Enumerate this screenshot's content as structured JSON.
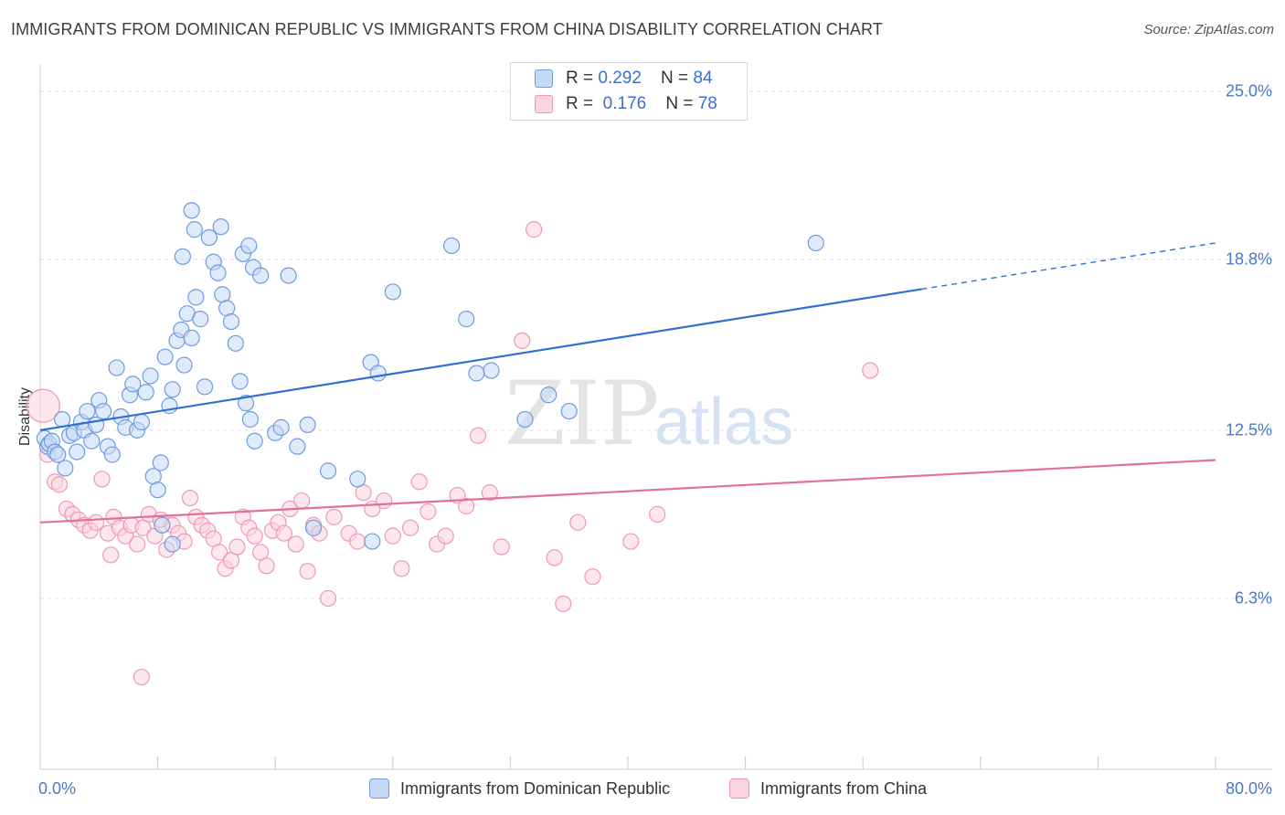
{
  "header": {
    "title": "IMMIGRANTS FROM DOMINICAN REPUBLIC VS IMMIGRANTS FROM CHINA DISABILITY CORRELATION CHART",
    "source": "Source: ZipAtlas.com"
  },
  "watermark": {
    "zip": "ZIP",
    "atlas": "atlas"
  },
  "colors": {
    "blue_fill": "#c5d8f5",
    "blue_stroke": "#6f9be0",
    "blue_line": "#2f6fd2",
    "pink_fill": "#fbd3df",
    "pink_stroke": "#ef98b5",
    "pink_line": "#e3709a",
    "grid": "#dcdcdc",
    "tick_label": "#4a78c8"
  },
  "legend": {
    "rows": [
      {
        "r_label": "R = ",
        "r_value": "0.292",
        "n_label": "N = ",
        "n_value": "84",
        "series": "blue"
      },
      {
        "r_label": "R = ",
        "r_value": " 0.176",
        "n_label": "N = ",
        "n_value": "78",
        "series": "pink"
      }
    ]
  },
  "chart_data": {
    "type": "scatter",
    "title": "IMMIGRANTS FROM DOMINICAN REPUBLIC VS IMMIGRANTS FROM CHINA DISABILITY CORRELATION CHART",
    "xlabel": "",
    "ylabel": "Disability",
    "xlim": [
      0,
      80
    ],
    "ylim": [
      0,
      26
    ],
    "x_tick_labels": [
      "0.0%",
      "80.0%"
    ],
    "y_ticks": [
      6.3,
      12.5,
      18.8,
      25.0
    ],
    "y_tick_labels": [
      "6.3%",
      "12.5%",
      "18.8%",
      "25.0%"
    ],
    "grid": true,
    "series": [
      {
        "name": "Immigrants from Dominican Republic",
        "color": "blue",
        "R": 0.292,
        "N": 84,
        "trend": {
          "x0": 0,
          "y0": 12.5,
          "x1": 60,
          "y1": 17.7,
          "dash_to_x": 80,
          "dash_to_y": 19.4
        },
        "points": [
          [
            0.3,
            12.2
          ],
          [
            0.5,
            11.9
          ],
          [
            0.6,
            12.0
          ],
          [
            0.8,
            12.1
          ],
          [
            1.0,
            11.7
          ],
          [
            1.2,
            11.6
          ],
          [
            1.5,
            12.9
          ],
          [
            1.7,
            11.1
          ],
          [
            2.0,
            12.3
          ],
          [
            2.3,
            12.4
          ],
          [
            2.5,
            11.7
          ],
          [
            2.8,
            12.8
          ],
          [
            3.0,
            12.5
          ],
          [
            3.2,
            13.2
          ],
          [
            3.5,
            12.1
          ],
          [
            3.8,
            12.7
          ],
          [
            4.0,
            13.6
          ],
          [
            4.3,
            13.2
          ],
          [
            4.6,
            11.9
          ],
          [
            4.9,
            11.6
          ],
          [
            5.2,
            14.8
          ],
          [
            5.5,
            13.0
          ],
          [
            5.8,
            12.6
          ],
          [
            6.1,
            13.8
          ],
          [
            6.3,
            14.2
          ],
          [
            6.6,
            12.5
          ],
          [
            6.9,
            12.8
          ],
          [
            7.2,
            13.9
          ],
          [
            7.5,
            14.5
          ],
          [
            7.7,
            10.8
          ],
          [
            8.0,
            10.3
          ],
          [
            8.2,
            11.3
          ],
          [
            8.5,
            15.2
          ],
          [
            8.8,
            13.4
          ],
          [
            9.0,
            14.0
          ],
          [
            9.3,
            15.8
          ],
          [
            9.6,
            16.2
          ],
          [
            9.8,
            14.9
          ],
          [
            10.0,
            16.8
          ],
          [
            10.3,
            15.9
          ],
          [
            10.6,
            17.4
          ],
          [
            10.9,
            16.6
          ],
          [
            11.2,
            14.1
          ],
          [
            11.5,
            19.6
          ],
          [
            11.8,
            18.7
          ],
          [
            12.1,
            18.3
          ],
          [
            12.4,
            17.5
          ],
          [
            12.7,
            17.0
          ],
          [
            13.0,
            16.5
          ],
          [
            13.3,
            15.7
          ],
          [
            13.6,
            14.3
          ],
          [
            14.0,
            13.5
          ],
          [
            14.3,
            12.9
          ],
          [
            14.6,
            12.1
          ],
          [
            10.3,
            20.6
          ],
          [
            10.5,
            19.9
          ],
          [
            9.7,
            18.9
          ],
          [
            12.3,
            20.0
          ],
          [
            13.8,
            19.0
          ],
          [
            14.2,
            19.3
          ],
          [
            14.5,
            18.5
          ],
          [
            15.0,
            18.2
          ],
          [
            16.9,
            18.2
          ],
          [
            16.0,
            12.4
          ],
          [
            16.4,
            12.6
          ],
          [
            17.5,
            11.9
          ],
          [
            18.2,
            12.7
          ],
          [
            19.6,
            11.0
          ],
          [
            21.6,
            10.7
          ],
          [
            22.5,
            15.0
          ],
          [
            23.0,
            14.6
          ],
          [
            24.0,
            17.6
          ],
          [
            28.0,
            19.3
          ],
          [
            29.0,
            16.6
          ],
          [
            29.7,
            14.6
          ],
          [
            30.7,
            14.7
          ],
          [
            33.0,
            12.9
          ],
          [
            34.6,
            13.8
          ],
          [
            36.0,
            13.2
          ],
          [
            52.8,
            19.4
          ],
          [
            8.3,
            9.0
          ],
          [
            9.0,
            8.3
          ],
          [
            18.6,
            8.9
          ],
          [
            22.6,
            8.4
          ]
        ]
      },
      {
        "name": "Immigrants from China",
        "color": "pink",
        "R": 0.176,
        "N": 78,
        "trend": {
          "x0": 0,
          "y0": 9.1,
          "x1": 80,
          "y1": 11.4
        },
        "points": [
          [
            0.2,
            13.4
          ],
          [
            0.5,
            11.6
          ],
          [
            1.0,
            10.6
          ],
          [
            1.3,
            10.5
          ],
          [
            1.8,
            9.6
          ],
          [
            2.2,
            9.4
          ],
          [
            2.6,
            9.2
          ],
          [
            3.0,
            9.0
          ],
          [
            3.4,
            8.8
          ],
          [
            3.8,
            9.1
          ],
          [
            4.2,
            10.7
          ],
          [
            4.6,
            8.7
          ],
          [
            5.0,
            9.3
          ],
          [
            5.4,
            8.9
          ],
          [
            5.8,
            8.6
          ],
          [
            6.2,
            9.0
          ],
          [
            6.6,
            8.3
          ],
          [
            7.0,
            8.9
          ],
          [
            7.4,
            9.4
          ],
          [
            7.8,
            8.6
          ],
          [
            8.2,
            9.2
          ],
          [
            8.6,
            8.1
          ],
          [
            9.0,
            9.0
          ],
          [
            9.4,
            8.7
          ],
          [
            9.8,
            8.4
          ],
          [
            10.2,
            10.0
          ],
          [
            10.6,
            9.3
          ],
          [
            11.0,
            9.0
          ],
          [
            11.4,
            8.8
          ],
          [
            11.8,
            8.5
          ],
          [
            12.2,
            8.0
          ],
          [
            12.6,
            7.4
          ],
          [
            13.0,
            7.7
          ],
          [
            13.4,
            8.2
          ],
          [
            13.8,
            9.3
          ],
          [
            14.2,
            8.9
          ],
          [
            14.6,
            8.6
          ],
          [
            15.0,
            8.0
          ],
          [
            15.4,
            7.5
          ],
          [
            15.8,
            8.8
          ],
          [
            16.2,
            9.1
          ],
          [
            16.6,
            8.7
          ],
          [
            17.0,
            9.6
          ],
          [
            17.4,
            8.3
          ],
          [
            17.8,
            9.9
          ],
          [
            18.2,
            7.3
          ],
          [
            18.6,
            9.0
          ],
          [
            19.0,
            8.7
          ],
          [
            19.6,
            6.3
          ],
          [
            20.0,
            9.3
          ],
          [
            21.0,
            8.7
          ],
          [
            21.6,
            8.4
          ],
          [
            22.0,
            10.2
          ],
          [
            22.6,
            9.6
          ],
          [
            23.4,
            9.9
          ],
          [
            24.0,
            8.6
          ],
          [
            24.6,
            7.4
          ],
          [
            25.2,
            8.9
          ],
          [
            25.8,
            10.6
          ],
          [
            26.4,
            9.5
          ],
          [
            27.0,
            8.3
          ],
          [
            27.6,
            8.6
          ],
          [
            28.4,
            10.1
          ],
          [
            29.0,
            9.7
          ],
          [
            29.8,
            12.3
          ],
          [
            30.6,
            10.2
          ],
          [
            31.4,
            8.2
          ],
          [
            32.8,
            15.8
          ],
          [
            33.6,
            19.9
          ],
          [
            35.0,
            7.8
          ],
          [
            35.6,
            6.1
          ],
          [
            36.6,
            9.1
          ],
          [
            37.6,
            7.1
          ],
          [
            40.2,
            8.4
          ],
          [
            42.0,
            9.4
          ],
          [
            56.5,
            14.7
          ],
          [
            4.8,
            7.9
          ],
          [
            6.9,
            3.4
          ]
        ]
      }
    ]
  }
}
